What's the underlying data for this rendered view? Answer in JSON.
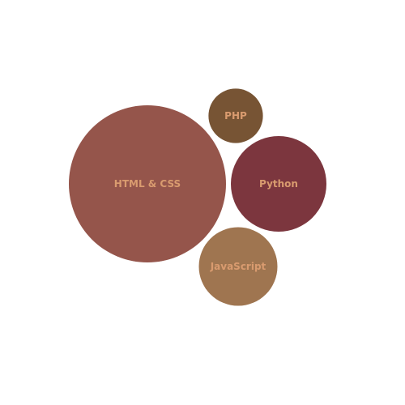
{
  "chart_data": {
    "type": "bubble",
    "title": "",
    "grid": false,
    "legend": "none",
    "series": [
      {
        "name": "HTML & CSS",
        "value": 100,
        "color": "#95554B",
        "label_color": "#D99B6F"
      },
      {
        "name": "Python",
        "value": 37,
        "color": "#7C363E",
        "label_color": "#D99B6F"
      },
      {
        "name": "JavaScript",
        "value": 25,
        "color": "#9F7550",
        "label_color": "#D99B6F"
      },
      {
        "name": "PHP",
        "value": 12,
        "color": "#775434",
        "label_color": "#D99B6F"
      }
    ]
  }
}
